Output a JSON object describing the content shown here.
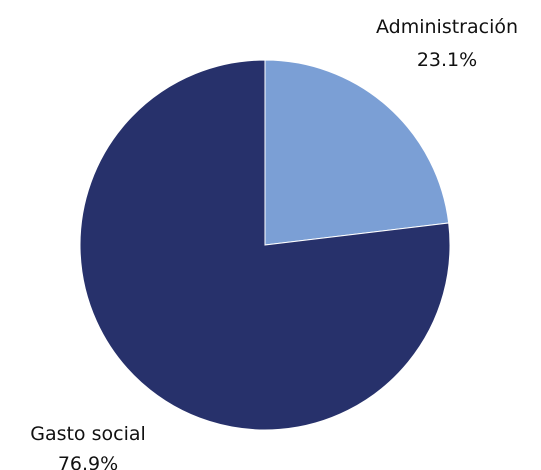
{
  "chart_data": {
    "type": "pie",
    "title": "",
    "slices": [
      {
        "label": "Administración",
        "value": 23.1,
        "value_label": "23.1%",
        "color": "#7b9fd5"
      },
      {
        "label": "Gasto social",
        "value": 76.9,
        "value_label": "76.9%",
        "color": "#27316b"
      }
    ],
    "start_angle": "12 o'clock",
    "direction": "clockwise",
    "legend": "none"
  }
}
